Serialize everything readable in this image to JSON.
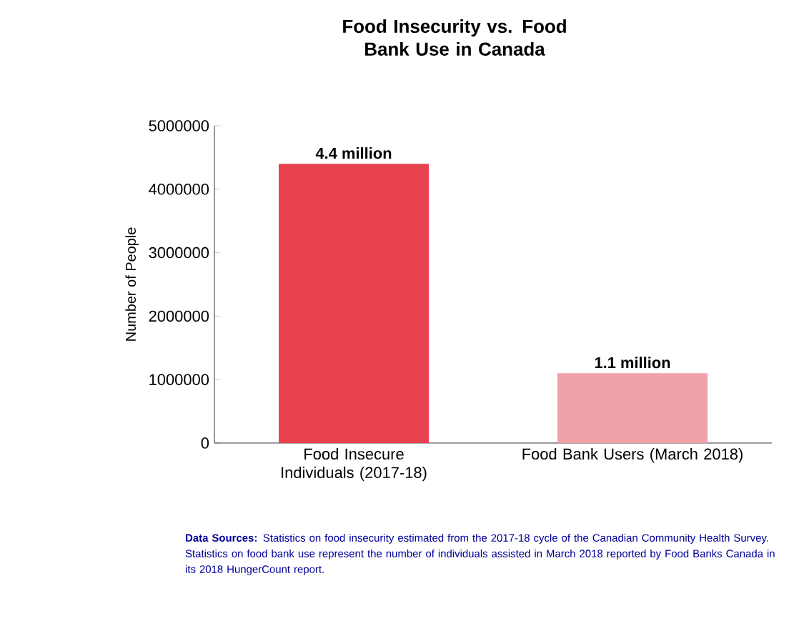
{
  "chart_data": {
    "type": "bar",
    "title": "Food Insecurity vs. Food Bank Use in Canada",
    "ylabel": "Number of People",
    "categories": [
      "Food Insecure Individuals (2017-18)",
      "Food Bank Users (March 2018)"
    ],
    "values": [
      4400000,
      1100000
    ],
    "colors": [
      "#e9424f",
      "#f0a1a9"
    ],
    "value_labels": [
      "4.4 million",
      "1.1 million"
    ],
    "ylim": [
      0,
      5000000
    ],
    "yticks": [
      0,
      1000000,
      2000000,
      3000000,
      4000000,
      5000000
    ],
    "grid": false,
    "annotations": [
      "**Data Sources:** Statistics on food insecurity estimated from the 2017-18 cycle of the Canadian Community Health Survey. Statistics on food bank use represent the number of individuals assisted in March 2018 reported by Food Banks Canada in its 2018 HungerCount report."
    ]
  }
}
